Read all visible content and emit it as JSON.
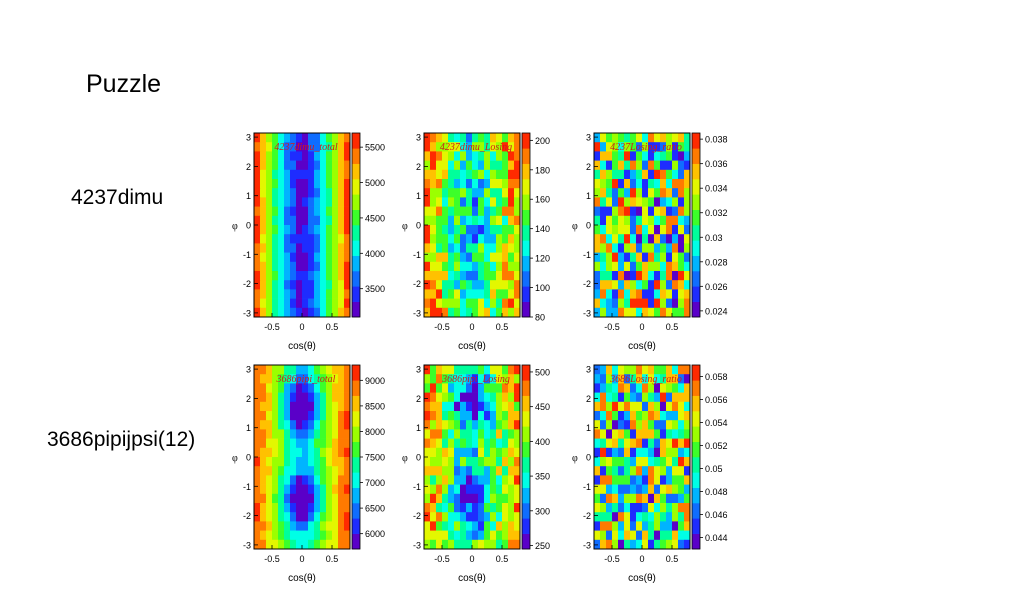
{
  "slide": {
    "title": "Puzzle",
    "rows": [
      {
        "label": "4237dimu"
      },
      {
        "label": "3686pipijpsi(12)"
      }
    ]
  },
  "palette": [
    "#5a00c8",
    "#1e2cff",
    "#0f6dff",
    "#00b4ff",
    "#00ffe6",
    "#00ff9b",
    "#3cff2a",
    "#9bff00",
    "#e3f700",
    "#ffc100",
    "#ff7a00",
    "#ff2a00"
  ],
  "chart_data": [
    {
      "type": "heatmap",
      "title": "4237dimu_total",
      "xlabel": "cos(θ)",
      "ylabel": "φ",
      "xlim": [
        -0.8,
        0.8
      ],
      "ylim": [
        -3.14,
        3.14
      ],
      "nx": 16,
      "ny": 20,
      "xticks": [
        -0.5,
        0,
        0.5
      ],
      "yticks": [
        -3,
        -2,
        -1,
        0,
        1,
        2,
        3
      ],
      "zlim": [
        3100,
        5700
      ],
      "zticks": [
        3500,
        4000,
        4500,
        5000,
        5500
      ],
      "zformat": 0,
      "pattern": "bands",
      "row": 0,
      "col": 0
    },
    {
      "type": "heatmap",
      "title": "4237dimu_Losing",
      "xlabel": "cos(θ)",
      "ylabel": "φ",
      "xlim": [
        -0.8,
        0.8
      ],
      "ylim": [
        -3.14,
        3.14
      ],
      "nx": 16,
      "ny": 20,
      "xticks": [
        -0.5,
        0,
        0.5
      ],
      "yticks": [
        -3,
        -2,
        -1,
        0,
        1,
        2,
        3
      ],
      "zlim": [
        80,
        205
      ],
      "zticks": [
        80,
        100,
        120,
        140,
        160,
        180,
        200
      ],
      "zformat": 0,
      "pattern": "noisy-center",
      "row": 0,
      "col": 1
    },
    {
      "type": "heatmap",
      "title": "4237Losing_ratio",
      "xlabel": "cos(θ)",
      "ylabel": "φ",
      "xlim": [
        -0.8,
        0.8
      ],
      "ylim": [
        -3.14,
        3.14
      ],
      "nx": 16,
      "ny": 20,
      "xticks": [
        -0.5,
        0,
        0.5
      ],
      "yticks": [
        -3,
        -2,
        -1,
        0,
        1,
        2,
        3
      ],
      "zlim": [
        0.0235,
        0.0385
      ],
      "zticks": [
        0.024,
        0.026,
        0.028,
        0.03,
        0.032,
        0.034,
        0.036,
        0.038
      ],
      "zformat": 3,
      "pattern": "noise",
      "row": 0,
      "col": 2
    },
    {
      "type": "heatmap",
      "title": "3686pipi_total",
      "xlabel": "cos(θ)",
      "ylabel": "φ",
      "xlim": [
        -0.8,
        0.8
      ],
      "ylim": [
        -3.14,
        3.14
      ],
      "nx": 16,
      "ny": 20,
      "xticks": [
        -0.5,
        0,
        0.5
      ],
      "yticks": [
        -3,
        -2,
        -1,
        0,
        1,
        2,
        3
      ],
      "zlim": [
        5700,
        9300
      ],
      "zticks": [
        6000,
        6500,
        7000,
        7500,
        8000,
        8500,
        9000
      ],
      "zformat": 0,
      "pattern": "blobs",
      "row": 1,
      "col": 0
    },
    {
      "type": "heatmap",
      "title": "3686pipi_Losing",
      "xlabel": "cos(θ)",
      "ylabel": "φ",
      "xlim": [
        -0.8,
        0.8
      ],
      "ylim": [
        -3.14,
        3.14
      ],
      "nx": 16,
      "ny": 20,
      "xticks": [
        -0.5,
        0,
        0.5
      ],
      "yticks": [
        -3,
        -2,
        -1,
        0,
        1,
        2,
        3
      ],
      "zlim": [
        245,
        510
      ],
      "zticks": [
        250,
        300,
        350,
        400,
        450,
        500
      ],
      "zformat": 0,
      "pattern": "noisy-blobs",
      "row": 1,
      "col": 1
    },
    {
      "type": "heatmap",
      "title": "3686Losing_ratio",
      "xlabel": "cos(θ)",
      "ylabel": "φ",
      "xlim": [
        -0.8,
        0.8
      ],
      "ylim": [
        -3.14,
        3.14
      ],
      "nx": 16,
      "ny": 20,
      "xticks": [
        -0.5,
        0,
        0.5
      ],
      "yticks": [
        -3,
        -2,
        -1,
        0,
        1,
        2,
        3
      ],
      "zlim": [
        0.043,
        0.059
      ],
      "zticks": [
        0.044,
        0.046,
        0.048,
        0.05,
        0.052,
        0.054,
        0.056,
        0.058
      ],
      "zformat": 3,
      "pattern": "noise",
      "row": 1,
      "col": 2
    }
  ]
}
